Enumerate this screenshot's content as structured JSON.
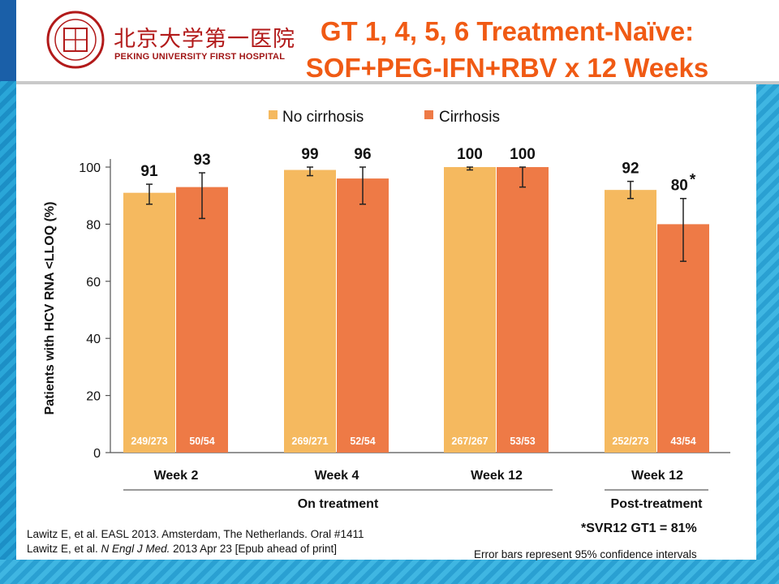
{
  "header": {
    "logo_cn": "北京大学第一医院",
    "logo_en": "PEKING UNIVERSITY FIRST HOSPITAL",
    "title_line1": "GT 1, 4, 5, 6 Treatment-Naïve:",
    "title_line2": "SOF+PEG-IFN+RBV x 12 Weeks"
  },
  "colors": {
    "no_cirrhosis": "#f5b95f",
    "cirrhosis": "#ee7a46",
    "title": "#f05a14"
  },
  "chart_data": {
    "type": "bar",
    "ylabel": "Patients with HCV RNA <LLOQ (%)",
    "ylim": [
      0,
      100
    ],
    "yticks": [
      0,
      20,
      40,
      60,
      80,
      100
    ],
    "categories": [
      "Week 2",
      "Week 4",
      "Week 12",
      "Week 12"
    ],
    "groups": [
      {
        "label": "On treatment",
        "categories": [
          0,
          1,
          2
        ]
      },
      {
        "label": "Post-treatment",
        "categories": [
          3
        ]
      }
    ],
    "legend_position": "top",
    "series": [
      {
        "name": "No cirrhosis",
        "values": [
          91,
          99,
          100,
          92
        ],
        "value_labels": [
          "91",
          "99",
          "100",
          "92"
        ],
        "counts": [
          "249/273",
          "269/271",
          "267/267",
          "252/273"
        ],
        "error_low": [
          87,
          97,
          99,
          89
        ],
        "error_high": [
          94,
          100,
          100,
          95
        ]
      },
      {
        "name": "Cirrhosis",
        "values": [
          93,
          96,
          100,
          80
        ],
        "value_labels": [
          "93",
          "96",
          "100",
          "80"
        ],
        "value_marks": [
          "",
          "",
          "",
          "*"
        ],
        "counts": [
          "50/54",
          "52/54",
          "53/53",
          "43/54"
        ],
        "error_low": [
          82,
          87,
          93,
          67
        ],
        "error_high": [
          98,
          100,
          100,
          89
        ]
      }
    ]
  },
  "footnotes": {
    "svr": "*SVR12 GT1 = 81%",
    "error_note": "Error bars represent 95% confidence intervals",
    "ref1": "Lawitz E, et al. EASL 2013. Amsterdam, The Netherlands.  Oral #1411",
    "ref2_pre": "Lawitz E, et al. ",
    "ref2_journal": "N Engl J Med.",
    "ref2_post": " 2013 Apr 23 [Epub ahead of print]"
  }
}
